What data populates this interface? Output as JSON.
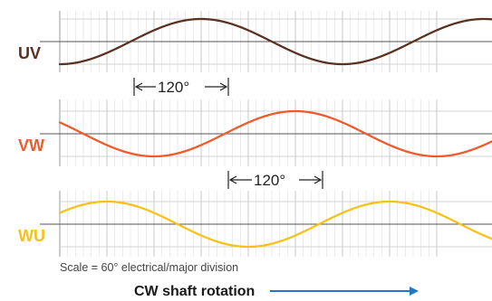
{
  "chart_data": {
    "type": "line",
    "x_unit": "degrees electrical",
    "x_range": [
      0,
      480
    ],
    "major_division_deg": 60,
    "series": [
      {
        "name": "UV",
        "color": "#5b3121",
        "phase_deg": -90
      },
      {
        "name": "VW",
        "color": "#f15a2b",
        "phase_deg": 150
      },
      {
        "name": "WU",
        "color": "#f6c21a",
        "phase_deg": 30
      }
    ],
    "annotations": [
      {
        "label": "120°",
        "from_deg": 50,
        "to_deg": 170
      },
      {
        "label": "120°",
        "from_deg": 170,
        "to_deg": 290
      }
    ],
    "scale_note": "Scale = 60° electrical/major division",
    "rotation_label": "CW shaft rotation",
    "rotation_arrow_color": "#2278c2"
  }
}
